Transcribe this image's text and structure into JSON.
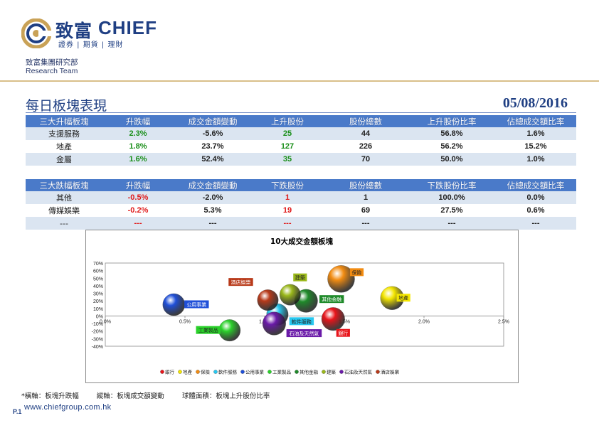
{
  "header": {
    "brand_cn": "致富",
    "brand_en": "CHIEF",
    "brand_sub": "證券 | 期貨 | 理財",
    "dept_cn": "致富集團研究部",
    "dept_en": "Research Team"
  },
  "page": {
    "title": "每日板塊表現",
    "date": "05/08/2016"
  },
  "colors": {
    "brand_blue": "#1f3f83",
    "header_blue": "#4a7ac9",
    "row_alt": "#dbe5f1",
    "gain_green": "#1a8f1a",
    "loss_red": "#e01b1b",
    "gold": "#d9bf8a"
  },
  "top_gainers": {
    "headers": [
      "三大升幅板塊",
      "升跌幅",
      "成交金額變動",
      "上升股份",
      "股份總數",
      "上升股份比率",
      "佔總成交額比率"
    ],
    "rows": [
      [
        "支援服務",
        "2.3%",
        "-5.6%",
        "25",
        "44",
        "56.8%",
        "1.6%"
      ],
      [
        "地產",
        "1.8%",
        "23.7%",
        "127",
        "226",
        "56.2%",
        "15.2%"
      ],
      [
        "金屬",
        "1.6%",
        "52.4%",
        "35",
        "70",
        "50.0%",
        "1.0%"
      ]
    ]
  },
  "top_losers": {
    "headers": [
      "三大跌幅板塊",
      "升跌幅",
      "成交金額變動",
      "下跌股份",
      "股份總數",
      "下跌股份比率",
      "佔總成交額比率"
    ],
    "rows": [
      [
        "其他",
        "-0.5%",
        "-2.0%",
        "1",
        "1",
        "100.0%",
        "0.0%"
      ],
      [
        "傳媒娛樂",
        "-0.2%",
        "5.3%",
        "19",
        "69",
        "27.5%",
        "0.6%"
      ],
      [
        "---",
        "---",
        "---",
        "---",
        "---",
        "---",
        "---"
      ]
    ]
  },
  "chart_data": {
    "type": "scatter",
    "title": "10大成交金額板塊",
    "xlim": [
      0,
      2.5
    ],
    "ylim": [
      -40,
      70
    ],
    "x_ticks": [
      "0.0%",
      "0.5%",
      "1.0%",
      "1.5%",
      "2.0%",
      "2.5%"
    ],
    "y_ticks": [
      "70%",
      "60%",
      "50%",
      "40%",
      "30%",
      "20%",
      "10%",
      "0%",
      "-10%",
      "-20%",
      "-30%",
      "-40%"
    ],
    "legend_position": "bottom",
    "series": [
      {
        "name": "銀行",
        "x": 1.43,
        "y": -4,
        "size": 0.55,
        "color": "#e8151b",
        "label": "銀行",
        "label_color": "#e8151b"
      },
      {
        "name": "地產",
        "x": 1.8,
        "y": 23.7,
        "size": 0.562,
        "color": "#f4e600",
        "label": "地產",
        "label_color": "#f4e600"
      },
      {
        "name": "保險",
        "x": 1.48,
        "y": 49,
        "size": 0.75,
        "color": "#f28c12",
        "label": "保險",
        "label_color": "#f28c12"
      },
      {
        "name": "軟件服務",
        "x": 1.08,
        "y": 2,
        "size": 0.48,
        "color": "#28c8f0",
        "label": "軟件服務",
        "label_color": "#28c8f0"
      },
      {
        "name": "公用事業",
        "x": 0.43,
        "y": 15,
        "size": 0.5,
        "color": "#1f4fd8",
        "label": "公用事業",
        "label_color": "#1f4fd8"
      },
      {
        "name": "工業製品",
        "x": 0.78,
        "y": -19,
        "size": 0.48,
        "color": "#2ad12a",
        "label": "工業製品",
        "label_color": "#2ad12a"
      },
      {
        "name": "其他金融",
        "x": 1.26,
        "y": 20,
        "size": 0.55,
        "color": "#1f8a2a",
        "label": "其他金融",
        "label_color": "#1f8a2a"
      },
      {
        "name": "建築",
        "x": 1.16,
        "y": 28,
        "size": 0.45,
        "color": "#9ab81a",
        "label": "建築",
        "label_color": "#9ab81a"
      },
      {
        "name": "石油及天然氣",
        "x": 1.06,
        "y": -10,
        "size": 0.55,
        "color": "#6a1aa8",
        "label": "石油及天然氣",
        "label_color": "#6a1aa8"
      },
      {
        "name": "酒店娛樂",
        "x": 1.02,
        "y": 21,
        "size": 0.45,
        "color": "#b83a1a",
        "label": "酒店娛樂",
        "label_color": "#b83a1a"
      }
    ]
  },
  "footer": {
    "note_x": "*橫軸：板塊升跌幅",
    "note_y": "縱軸：板塊成交額變動",
    "note_size": "球體面積：板塊上升股份比率",
    "page_num": "P.1",
    "website": "www.chiefgroup.com.hk"
  }
}
